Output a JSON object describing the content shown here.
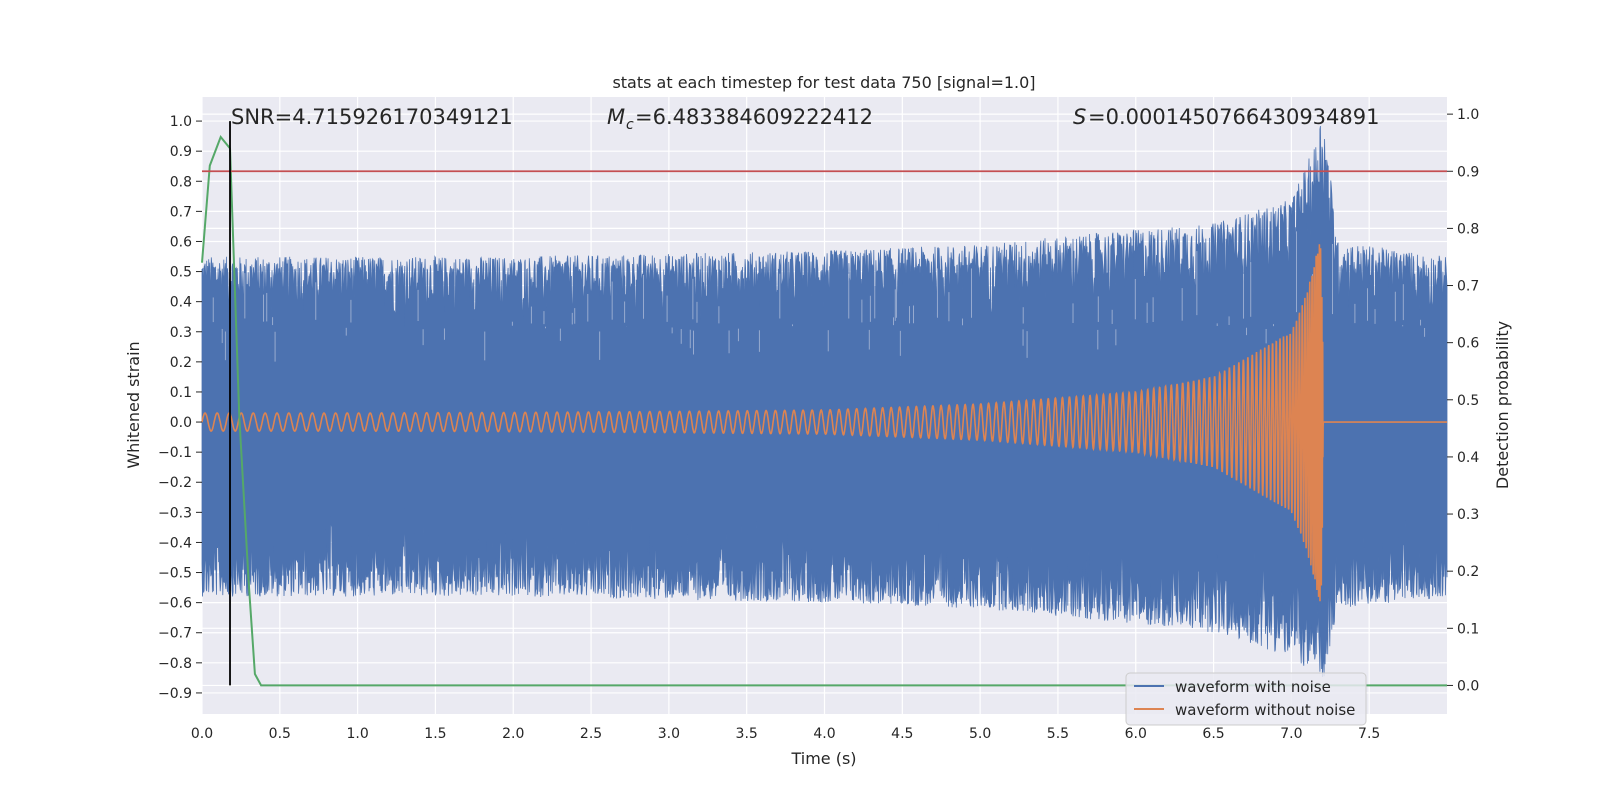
{
  "chart_data": {
    "type": "line",
    "title": "stats at each timestep for test data 750 [signal=1.0]",
    "xlabel": "Time (s)",
    "ylabel": "Whitened strain",
    "ylabel_right": "Detection probability",
    "xlim": [
      0.0,
      8.0
    ],
    "ylim": [
      -0.97,
      1.08
    ],
    "ylim_right": [
      -0.05,
      1.03
    ],
    "x_ticks": [
      "0.0",
      "0.5",
      "1.0",
      "1.5",
      "2.0",
      "2.5",
      "3.0",
      "3.5",
      "4.0",
      "4.5",
      "5.0",
      "5.5",
      "6.0",
      "6.5",
      "7.0",
      "7.5"
    ],
    "y_ticks": [
      "-0.9",
      "-0.8",
      "-0.7",
      "-0.6",
      "-0.5",
      "-0.4",
      "-0.3",
      "-0.2",
      "-0.1",
      "0.0",
      "0.1",
      "0.2",
      "0.3",
      "0.4",
      "0.5",
      "0.6",
      "0.7",
      "0.8",
      "0.9",
      "1.0"
    ],
    "y_ticks_right": [
      "0.0",
      "0.1",
      "0.2",
      "0.3",
      "0.4",
      "0.5",
      "0.6",
      "0.7",
      "0.8",
      "0.9",
      "1.0"
    ],
    "grid": true,
    "legend_position": "lower-right",
    "annotations": {
      "snr": "SNR=4.715926170349121",
      "mc": "=6.483384609222412",
      "s": "=0.0001450766430934891"
    },
    "series": [
      {
        "name": "waveform with noise",
        "color": "#4c72b0",
        "axis": "left",
        "envelope": {
          "x": [
            0.0,
            1.0,
            2.0,
            3.0,
            4.0,
            5.0,
            6.0,
            6.5,
            7.0,
            7.15,
            7.2,
            7.3,
            8.0
          ],
          "upper": [
            0.55,
            0.55,
            0.55,
            0.56,
            0.57,
            0.59,
            0.64,
            0.66,
            0.74,
            0.92,
            1.05,
            0.6,
            0.55
          ],
          "lower": [
            -0.58,
            -0.58,
            -0.58,
            -0.59,
            -0.6,
            -0.62,
            -0.67,
            -0.7,
            -0.78,
            -0.84,
            -0.88,
            -0.62,
            -0.58
          ]
        }
      },
      {
        "name": "waveform without noise",
        "color": "#dd8452",
        "axis": "left",
        "chirp": {
          "x": [
            0.0,
            1.0,
            2.0,
            3.0,
            4.0,
            5.0,
            6.0,
            6.5,
            7.0,
            7.1,
            7.19,
            7.21,
            8.0
          ],
          "amplitude": [
            0.03,
            0.03,
            0.032,
            0.035,
            0.04,
            0.06,
            0.1,
            0.15,
            0.3,
            0.43,
            0.62,
            0.0,
            0.0
          ]
        }
      },
      {
        "name": "detection probability",
        "color": "#55a868",
        "axis": "right",
        "x": [
          0.0,
          0.05,
          0.12,
          0.18,
          0.24,
          0.3,
          0.34,
          0.38,
          8.0
        ],
        "y": [
          0.74,
          0.91,
          0.96,
          0.94,
          0.47,
          0.18,
          0.02,
          0.0,
          0.0
        ]
      }
    ],
    "reference_lines": {
      "threshold_right_y": 0.9,
      "threshold_color": "#c44e52",
      "trigger_time_x": 0.18
    }
  }
}
